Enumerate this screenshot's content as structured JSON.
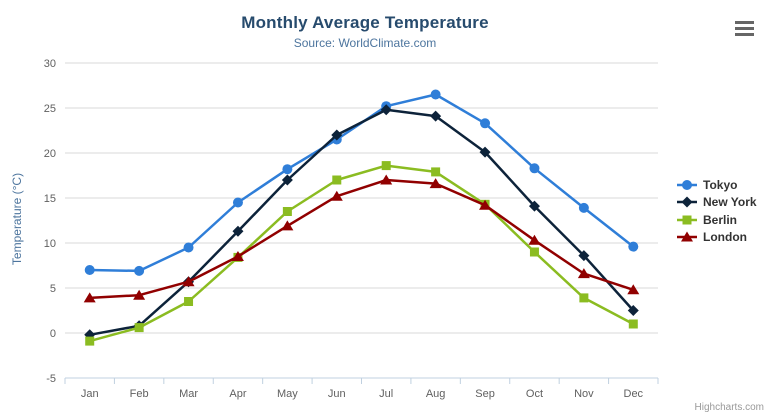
{
  "chart_data": {
    "type": "line",
    "title": "Monthly Average Temperature",
    "subtitle": "Source: WorldClimate.com",
    "xlabel": "",
    "ylabel": "Temperature (°C)",
    "ylim": [
      -5,
      30
    ],
    "ytick_step": 5,
    "grid": "horizontal",
    "legend_position": "right",
    "categories": [
      "Jan",
      "Feb",
      "Mar",
      "Apr",
      "May",
      "Jun",
      "Jul",
      "Aug",
      "Sep",
      "Oct",
      "Nov",
      "Dec"
    ],
    "series": [
      {
        "name": "Tokyo",
        "color": "#2f7ed8",
        "marker": "circle",
        "values": [
          7.0,
          6.9,
          9.5,
          14.5,
          18.2,
          21.5,
          25.2,
          26.5,
          23.3,
          18.3,
          13.9,
          9.6
        ]
      },
      {
        "name": "New York",
        "color": "#0d233a",
        "marker": "diamond",
        "values": [
          -0.2,
          0.8,
          5.7,
          11.3,
          17.0,
          22.0,
          24.8,
          24.1,
          20.1,
          14.1,
          8.6,
          2.5
        ]
      },
      {
        "name": "Berlin",
        "color": "#8bbc21",
        "marker": "square",
        "values": [
          -0.9,
          0.6,
          3.5,
          8.4,
          13.5,
          17.0,
          18.6,
          17.9,
          14.3,
          9.0,
          3.9,
          1.0
        ]
      },
      {
        "name": "London",
        "color": "#910000",
        "marker": "triangle",
        "values": [
          3.9,
          4.2,
          5.7,
          8.5,
          11.9,
          15.2,
          17.0,
          16.6,
          14.2,
          10.3,
          6.6,
          4.8
        ]
      }
    ],
    "axis_colors": {
      "grid_line": "#d8d8d8",
      "axis_line": "#c0d0e0",
      "tick_label": "#606060"
    }
  },
  "credits": {
    "label": "Highcharts.com"
  }
}
